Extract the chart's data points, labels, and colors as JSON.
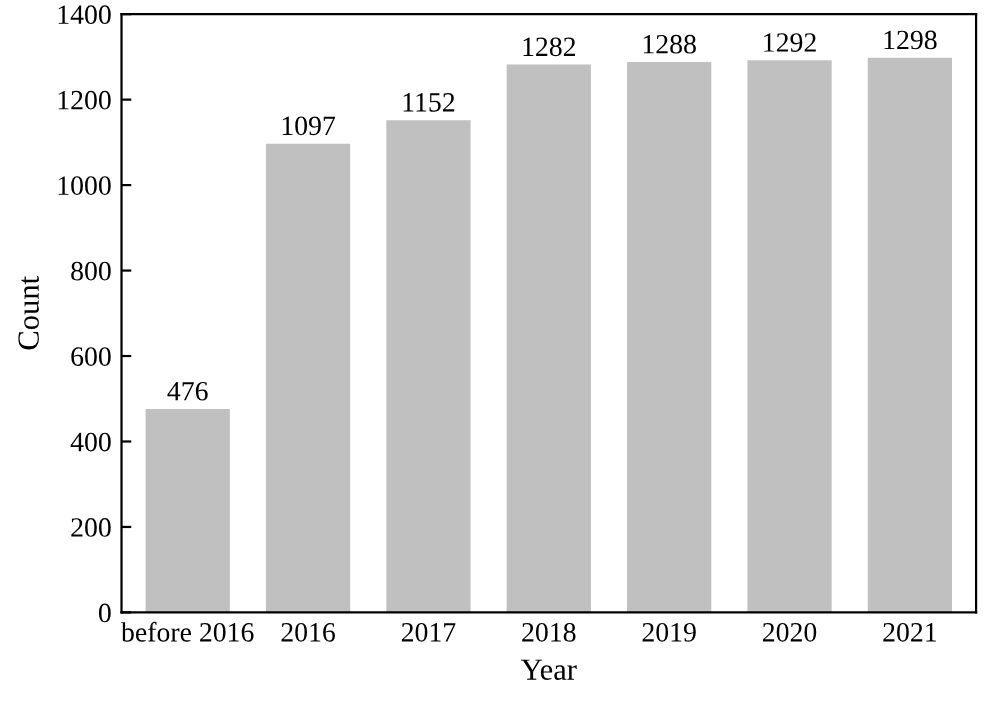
{
  "chart_data": {
    "type": "bar",
    "xlabel": "Year",
    "ylabel": "Count",
    "categories": [
      "before 2016",
      "2016",
      "2017",
      "2018",
      "2019",
      "2020",
      "2021"
    ],
    "values": [
      476,
      1097,
      1152,
      1282,
      1288,
      1292,
      1298
    ],
    "color": "#c0c0c0",
    "ylim": [
      0,
      1400
    ],
    "yticks": [
      0,
      200,
      400,
      600,
      800,
      1000,
      1200,
      1400
    ],
    "data_labels": true,
    "grid": false
  }
}
